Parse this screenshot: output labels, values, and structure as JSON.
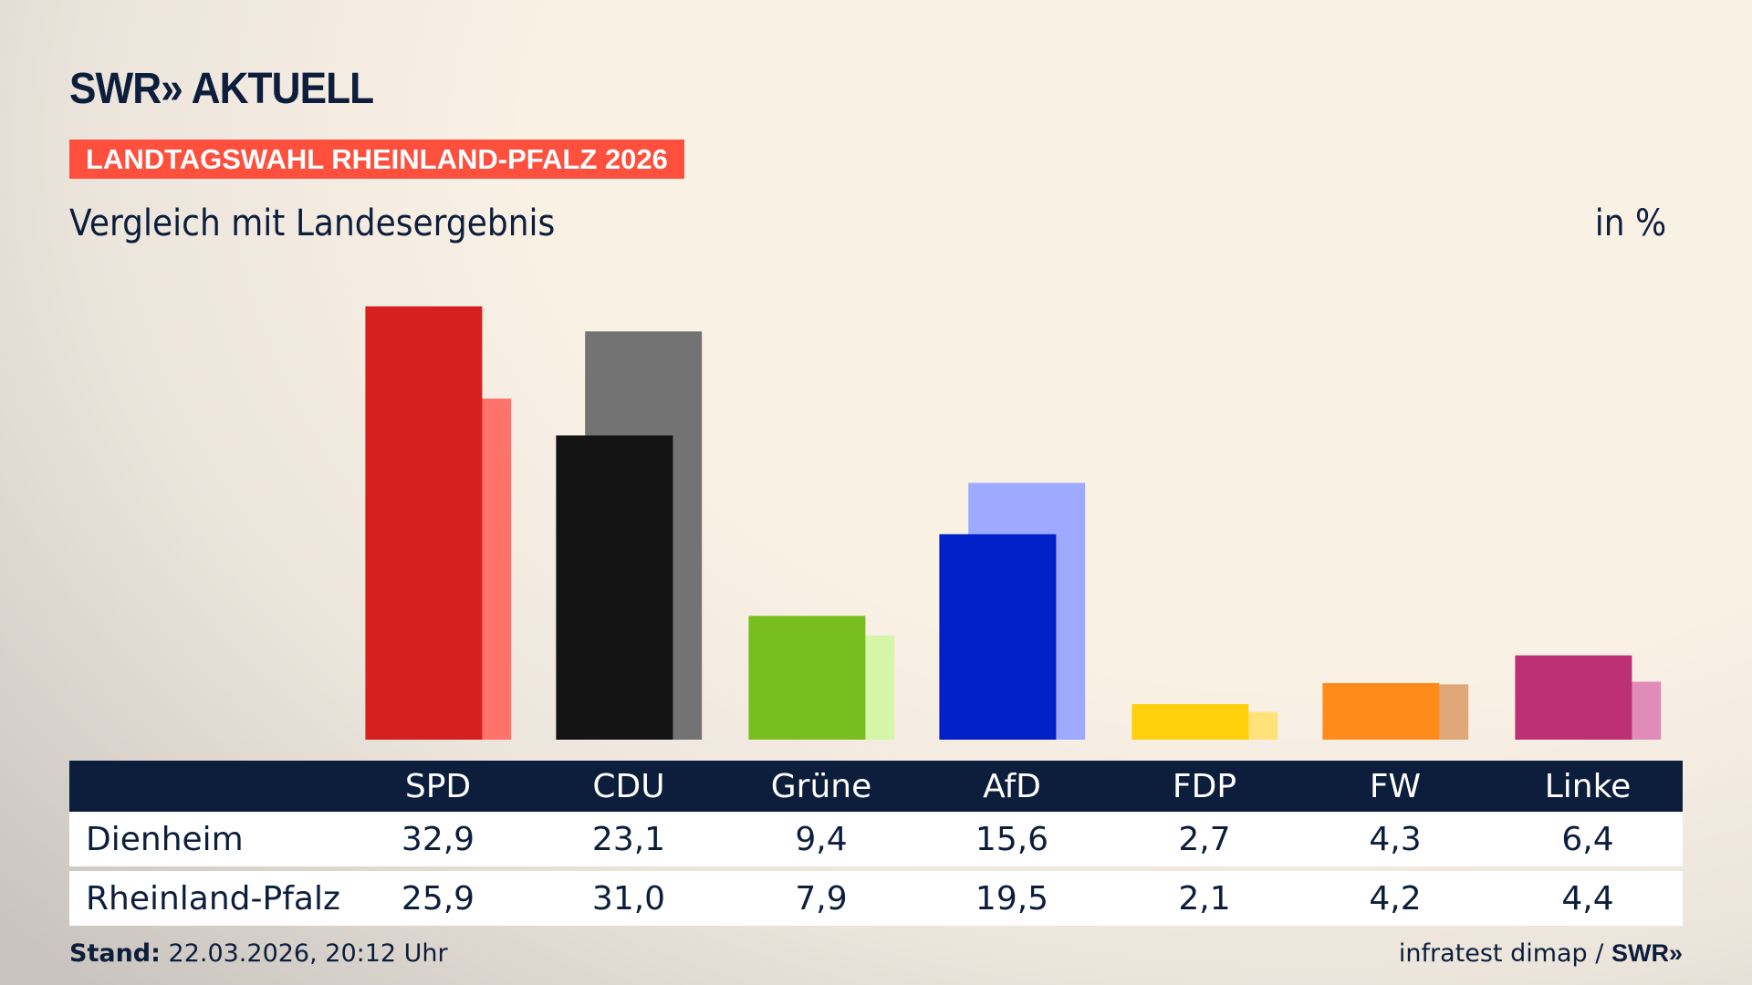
{
  "header": {
    "logo": "SWR» AKTUELL",
    "kicker": "LANDTAGSWAHL RHEINLAND-PFALZ 2026",
    "subtitle": "Vergleich mit Landesergebnis",
    "unit": "in %"
  },
  "chart_data": {
    "type": "bar",
    "categories": [
      "SPD",
      "CDU",
      "Grüne",
      "AfD",
      "FDP",
      "FW",
      "Linke"
    ],
    "series": [
      {
        "name": "Dienheim",
        "values": [
          32.9,
          23.1,
          9.4,
          15.6,
          2.7,
          4.3,
          6.4
        ],
        "colors": [
          "#d61f1f",
          "#141414",
          "#78be1e",
          "#0020c8",
          "#ffd00e",
          "#ff8b1a",
          "#bd3075"
        ]
      },
      {
        "name": "Rheinland-Pfalz",
        "values": [
          25.9,
          31.0,
          7.9,
          19.5,
          2.1,
          4.2,
          4.4
        ],
        "colors": [
          "#ff736b",
          "#737373",
          "#d5f5a8",
          "#9eaaff",
          "#ffe27a",
          "#e0a878",
          "#e08bb8"
        ]
      }
    ],
    "ylim": [
      0,
      33
    ]
  },
  "table": {
    "headers": [
      "SPD",
      "CDU",
      "Grüne",
      "AfD",
      "FDP",
      "FW",
      "Linke"
    ],
    "rows": [
      {
        "label": "Dienheim",
        "values": [
          "32,9",
          "23,1",
          "9,4",
          "15,6",
          "2,7",
          "4,3",
          "6,4"
        ]
      },
      {
        "label": "Rheinland-Pfalz",
        "values": [
          "25,9",
          "31,0",
          "7,9",
          "19,5",
          "2,1",
          "4,2",
          "4,4"
        ]
      }
    ]
  },
  "footer": {
    "stand_label": "Stand:",
    "stand_value": "22.03.2026, 20:12 Uhr",
    "source": "infratest dimap /",
    "source_logo": "SWR»"
  },
  "colors": {
    "navy": "#0c1e3c",
    "accent": "#ff4f3d"
  }
}
